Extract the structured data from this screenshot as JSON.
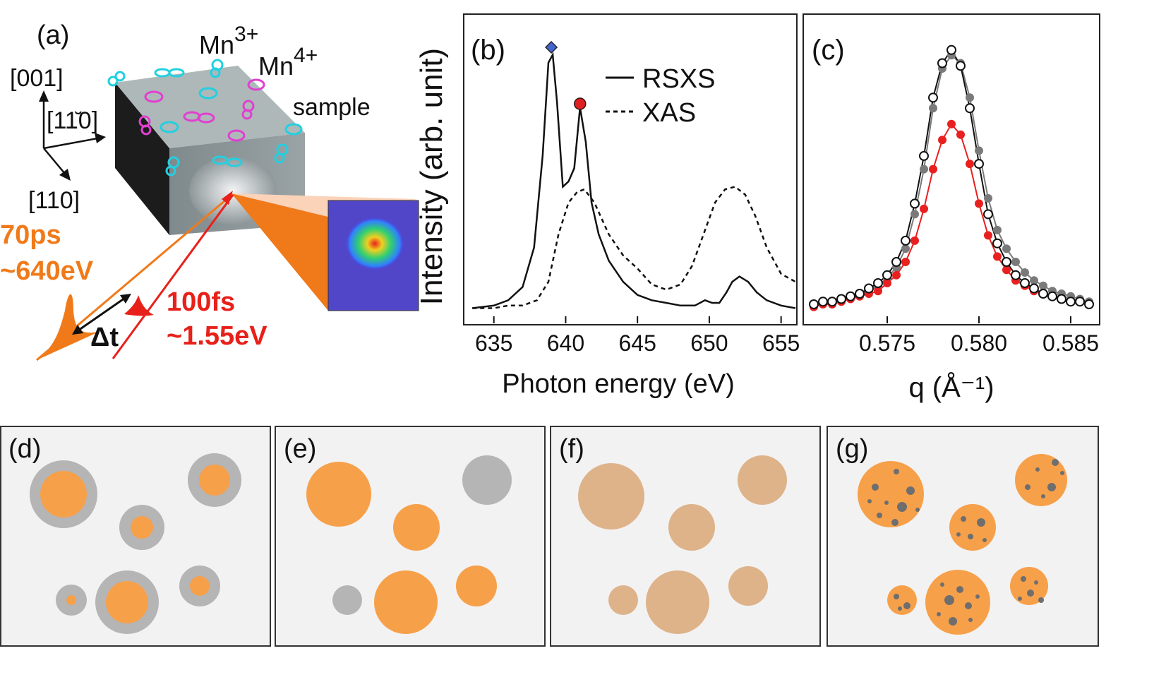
{
  "panel_a": {
    "label": "(a)",
    "axis_labels": {
      "z": "[001]",
      "y": "[11̆0]",
      "x": "[110]"
    },
    "mn3_base": "Mn",
    "mn3_sup": "3+",
    "mn4_base": "Mn",
    "mn4_sup": "4+",
    "sample_label": "sample",
    "xray_time": "70ps",
    "xray_energy": "~640eV",
    "laser_time": "100fs",
    "laser_energy": "~1.55eV",
    "delay_label": "Δt",
    "colors": {
      "xray": "#f07a1a",
      "laser": "#e8201a",
      "mn3": "#22d0e0",
      "mn4": "#e040d0"
    }
  },
  "chart_data": [
    {
      "panel": "(b)",
      "type": "line",
      "title": "",
      "xlabel": "Photon energy (eV)",
      "ylabel": "Intensity (arb. unit)",
      "xlim": [
        633,
        656
      ],
      "ylim": [
        0,
        1.0
      ],
      "xticks": [
        635,
        640,
        645,
        650,
        655
      ],
      "legend": [
        "RSXS",
        "XAS"
      ],
      "legend_position": "top-right",
      "markers": [
        {
          "name": "diamond",
          "x": 639,
          "color": "#4466cc"
        },
        {
          "name": "circle",
          "x": 641,
          "color": "#e02020"
        }
      ],
      "series": [
        {
          "name": "RSXS",
          "style": "solid",
          "x": [
            633.5,
            635,
            636,
            637,
            637.8,
            638.4,
            638.8,
            639.1,
            639.4,
            639.8,
            640.2,
            640.6,
            641.0,
            641.4,
            641.8,
            642.3,
            643,
            644,
            645,
            646,
            647,
            648,
            649,
            649.7,
            650.2,
            650.7,
            651.2,
            651.6,
            652.1,
            652.7,
            653.3,
            654,
            655,
            656
          ],
          "values": [
            0.02,
            0.03,
            0.05,
            0.1,
            0.25,
            0.6,
            0.95,
            0.98,
            0.8,
            0.48,
            0.5,
            0.55,
            0.78,
            0.65,
            0.42,
            0.3,
            0.2,
            0.12,
            0.07,
            0.05,
            0.04,
            0.03,
            0.03,
            0.05,
            0.04,
            0.04,
            0.08,
            0.12,
            0.14,
            0.12,
            0.08,
            0.05,
            0.03,
            0.02
          ]
        },
        {
          "name": "XAS",
          "style": "dashed",
          "x": [
            633.5,
            635,
            636,
            637,
            638,
            638.8,
            639.5,
            640.2,
            640.8,
            641.3,
            642,
            643,
            644,
            645,
            646,
            647,
            648,
            648.8,
            649.6,
            650.4,
            651.1,
            651.8,
            652.5,
            653.2,
            654,
            655,
            656
          ],
          "values": [
            0.02,
            0.02,
            0.03,
            0.03,
            0.05,
            0.12,
            0.3,
            0.42,
            0.46,
            0.47,
            0.42,
            0.3,
            0.22,
            0.17,
            0.11,
            0.09,
            0.11,
            0.18,
            0.3,
            0.42,
            0.47,
            0.48,
            0.45,
            0.37,
            0.25,
            0.15,
            0.12
          ]
        }
      ]
    },
    {
      "panel": "(c)",
      "type": "scatter",
      "title": "",
      "xlabel": "q (Å⁻¹)",
      "ylabel": "",
      "xlim": [
        0.5705,
        0.5865
      ],
      "ylim": [
        0,
        1.05
      ],
      "xticks": [
        0.575,
        0.58,
        0.585
      ],
      "xtick_labels": [
        "0.575",
        "0.580",
        "0.585"
      ],
      "fit_lorentzian": true,
      "series": [
        {
          "name": "open-black",
          "marker": "open-circle",
          "color": "#111111",
          "x": [
            0.571,
            0.5715,
            0.572,
            0.5725,
            0.573,
            0.5735,
            0.574,
            0.5745,
            0.575,
            0.5755,
            0.576,
            0.5765,
            0.577,
            0.5775,
            0.578,
            0.5785,
            0.579,
            0.5795,
            0.58,
            0.5805,
            0.581,
            0.5815,
            0.582,
            0.5825,
            0.583,
            0.5835,
            0.584,
            0.5845,
            0.585,
            0.5855,
            0.586
          ],
          "values": [
            0.04,
            0.05,
            0.05,
            0.06,
            0.07,
            0.08,
            0.1,
            0.12,
            0.15,
            0.2,
            0.28,
            0.42,
            0.6,
            0.82,
            0.95,
            1.0,
            0.94,
            0.78,
            0.57,
            0.38,
            0.27,
            0.2,
            0.15,
            0.12,
            0.1,
            0.08,
            0.07,
            0.06,
            0.05,
            0.05,
            0.04
          ]
        },
        {
          "name": "filled-gray",
          "marker": "filled-circle",
          "color": "#7a7a7a",
          "x": [
            0.571,
            0.5715,
            0.572,
            0.5725,
            0.573,
            0.5735,
            0.574,
            0.5745,
            0.575,
            0.5755,
            0.576,
            0.5765,
            0.577,
            0.5775,
            0.578,
            0.5785,
            0.579,
            0.5795,
            0.58,
            0.5805,
            0.581,
            0.5815,
            0.582,
            0.5825,
            0.583,
            0.5835,
            0.584,
            0.5845,
            0.585,
            0.5855,
            0.586
          ],
          "values": [
            0.04,
            0.05,
            0.05,
            0.06,
            0.07,
            0.08,
            0.09,
            0.11,
            0.14,
            0.18,
            0.25,
            0.38,
            0.55,
            0.78,
            0.93,
            0.98,
            0.95,
            0.82,
            0.62,
            0.44,
            0.32,
            0.25,
            0.2,
            0.16,
            0.13,
            0.11,
            0.09,
            0.08,
            0.07,
            0.06,
            0.05
          ]
        },
        {
          "name": "filled-red",
          "marker": "filled-circle",
          "color": "#e82020",
          "x": [
            0.571,
            0.5715,
            0.572,
            0.5725,
            0.573,
            0.5735,
            0.574,
            0.5745,
            0.575,
            0.5755,
            0.576,
            0.5765,
            0.577,
            0.5775,
            0.578,
            0.5785,
            0.579,
            0.5795,
            0.58,
            0.5805,
            0.581,
            0.5815,
            0.582,
            0.5825,
            0.583,
            0.5835,
            0.584,
            0.5845,
            0.585,
            0.5855,
            0.586
          ],
          "values": [
            0.03,
            0.04,
            0.04,
            0.05,
            0.06,
            0.07,
            0.08,
            0.09,
            0.12,
            0.15,
            0.2,
            0.28,
            0.4,
            0.55,
            0.66,
            0.72,
            0.68,
            0.57,
            0.42,
            0.3,
            0.22,
            0.17,
            0.13,
            0.11,
            0.09,
            0.08,
            0.07,
            0.06,
            0.05,
            0.05,
            0.04
          ]
        }
      ]
    }
  ],
  "bottom_panels": [
    {
      "label": "(d)",
      "style": "core-shell",
      "colors": {
        "core": "#f7a04a",
        "shell": "#b5b5b5"
      }
    },
    {
      "label": "(e)",
      "style": "mixed",
      "colors": {
        "orange": "#f7a04a",
        "gray": "#b5b5b5"
      }
    },
    {
      "label": "(f)",
      "style": "uniform",
      "colors": {
        "fill": "#deb38a"
      }
    },
    {
      "label": "(g)",
      "style": "dotted",
      "colors": {
        "fill": "#f7a04a",
        "dots": "#6e6e6e"
      }
    }
  ]
}
